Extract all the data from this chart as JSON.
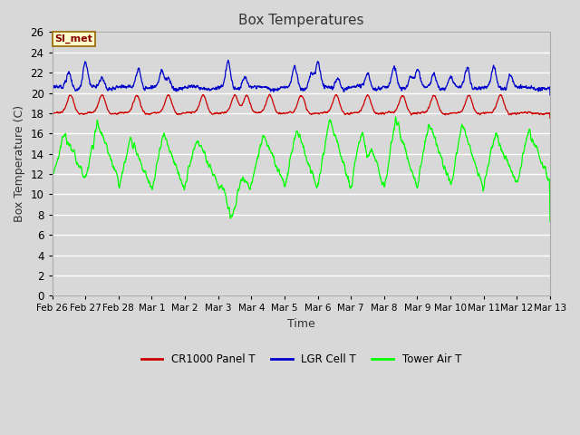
{
  "title": "Box Temperatures",
  "xlabel": "Time",
  "ylabel": "Box Temperature (C)",
  "ylim": [
    0,
    26
  ],
  "yticks": [
    0,
    2,
    4,
    6,
    8,
    10,
    12,
    14,
    16,
    18,
    20,
    22,
    24,
    26
  ],
  "bg_color": "#d8d8d8",
  "plot_bg_color": "#d8d8d8",
  "grid_color": "#ffffff",
  "legend_label": "SI_met",
  "legend_bg": "#ffffcc",
  "legend_border": "#996600",
  "series_colors": {
    "cr1000": "#cc0000",
    "lgr": "#0000cc",
    "tower": "#00ff00"
  },
  "series_labels": [
    "CR1000 Panel T",
    "LGR Cell T",
    "Tower Air T"
  ],
  "x_tick_labels": [
    "Feb 26",
    "Feb 27",
    "Feb 28",
    "Mar 1",
    "Mar 2",
    "Mar 3",
    "Mar 4",
    "Mar 5",
    "Mar 6",
    "Mar 7",
    "Mar 8",
    "Mar 9",
    "Mar 10",
    "Mar 11",
    "Mar 12",
    "Mar 13"
  ],
  "figsize": [
    6.4,
    4.8
  ],
  "dpi": 100
}
